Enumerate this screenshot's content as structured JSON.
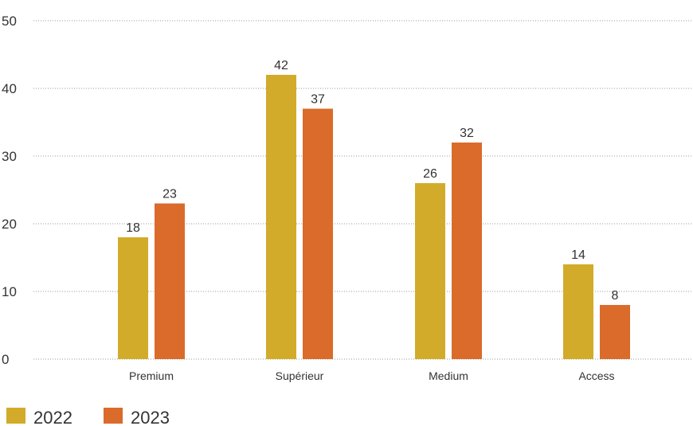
{
  "chart_data": {
    "type": "bar",
    "categories": [
      "Premium",
      "Supérieur",
      "Medium",
      "Access"
    ],
    "series": [
      {
        "name": "2022",
        "color": "#d2ab2a",
        "values": [
          18,
          42,
          26,
          14
        ]
      },
      {
        "name": "2023",
        "color": "#da6b2b",
        "values": [
          23,
          37,
          32,
          8
        ]
      }
    ],
    "y_ticks": [
      0,
      10,
      20,
      30,
      40,
      50
    ],
    "ylim": [
      0,
      50
    ],
    "grid": true,
    "grid_style": "dotted",
    "legend_position": "bottom-left",
    "value_labels": [
      "18",
      "42",
      "26",
      "14",
      "23",
      "37",
      "32",
      "8"
    ]
  }
}
